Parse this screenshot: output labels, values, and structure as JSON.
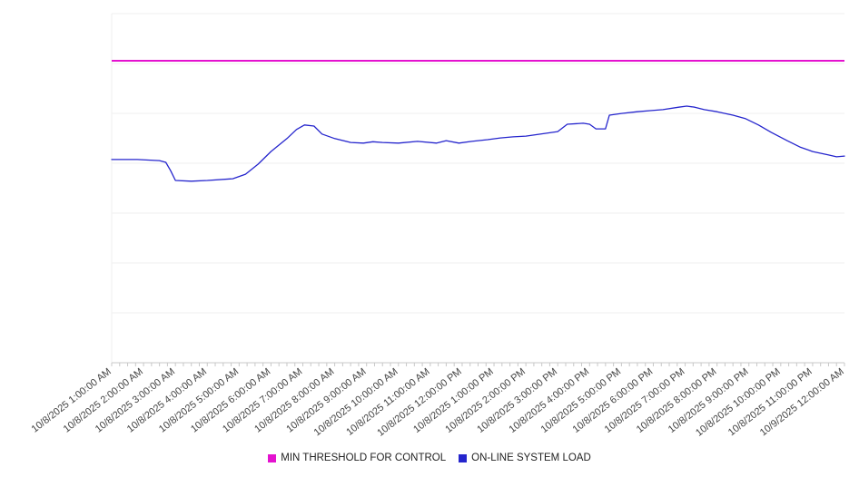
{
  "page": {
    "background": "#ffffff"
  },
  "legend": {
    "position": "bottom-center"
  },
  "chart_data": {
    "type": "line",
    "title": "",
    "xlabel": "",
    "ylabel": "",
    "y_axis_labels_visible": false,
    "ylim": [
      0,
      100
    ],
    "grid": "horizontal",
    "gridline_count": 7,
    "legend_position": "bottom",
    "colors": {
      "grid": "#efefef",
      "axis": "#c8c8c8",
      "tick_text": "#444444",
      "background": "#ffffff"
    },
    "x_tick_labels": [
      "10/8/2025 1:00:00 AM",
      "10/8/2025 2:00:00 AM",
      "10/8/2025 3:00:00 AM",
      "10/8/2025 4:00:00 AM",
      "10/8/2025 5:00:00 AM",
      "10/8/2025 6:00:00 AM",
      "10/8/2025 7:00:00 AM",
      "10/8/2025 8:00:00 AM",
      "10/8/2025 9:00:00 AM",
      "10/8/2025 10:00:00 AM",
      "10/8/2025 11:00:00 AM",
      "10/8/2025 12:00:00 PM",
      "10/8/2025 1:00:00 PM",
      "10/8/2025 2:00:00 PM",
      "10/8/2025 3:00:00 PM",
      "10/8/2025 4:00:00 PM",
      "10/8/2025 5:00:00 PM",
      "10/8/2025 6:00:00 PM",
      "10/8/2025 7:00:00 PM",
      "10/8/2025 8:00:00 PM",
      "10/8/2025 9:00:00 PM",
      "10/8/2025 10:00:00 PM",
      "10/8/2025 11:00:00 PM",
      "10/9/2025 12:00:00 AM"
    ],
    "series": [
      {
        "name": "MIN THRESHOLD FOR CONTROL",
        "type": "threshold",
        "color": "#e412cf",
        "value": 86.5
      },
      {
        "name": "ON-LINE SYSTEM LOAD",
        "type": "line",
        "color": "#2525cd",
        "points": [
          [
            0,
            58.2
          ],
          [
            0.8,
            58.2
          ],
          [
            1.5,
            57.9
          ],
          [
            1.7,
            57.4
          ],
          [
            1.85,
            55.0
          ],
          [
            2,
            52.2
          ],
          [
            2.5,
            52.0
          ],
          [
            3,
            52.2
          ],
          [
            3.8,
            52.7
          ],
          [
            4.2,
            54.0
          ],
          [
            4.6,
            56.9
          ],
          [
            5,
            60.5
          ],
          [
            5.5,
            64.2
          ],
          [
            5.8,
            66.8
          ],
          [
            6.05,
            68.1
          ],
          [
            6.35,
            67.8
          ],
          [
            6.6,
            65.5
          ],
          [
            7,
            64.2
          ],
          [
            7.5,
            63.1
          ],
          [
            7.9,
            62.9
          ],
          [
            8.2,
            63.3
          ],
          [
            8.5,
            63.1
          ],
          [
            9,
            62.9
          ],
          [
            9.6,
            63.4
          ],
          [
            10.2,
            62.9
          ],
          [
            10.5,
            63.6
          ],
          [
            10.9,
            62.9
          ],
          [
            11.3,
            63.4
          ],
          [
            11.8,
            63.9
          ],
          [
            12.2,
            64.4
          ],
          [
            12.6,
            64.7
          ],
          [
            13,
            64.9
          ],
          [
            13.6,
            65.7
          ],
          [
            14,
            66.2
          ],
          [
            14.3,
            68.3
          ],
          [
            14.8,
            68.6
          ],
          [
            15,
            68.3
          ],
          [
            15.2,
            67.0
          ],
          [
            15.5,
            67.0
          ],
          [
            15.62,
            70.9
          ],
          [
            16,
            71.4
          ],
          [
            16.5,
            71.9
          ],
          [
            16.9,
            72.2
          ],
          [
            17.3,
            72.5
          ],
          [
            17.8,
            73.2
          ],
          [
            18.05,
            73.5
          ],
          [
            18.3,
            73.2
          ],
          [
            18.6,
            72.5
          ],
          [
            19,
            71.9
          ],
          [
            19.5,
            70.9
          ],
          [
            19.9,
            69.9
          ],
          [
            20.3,
            68.1
          ],
          [
            20.7,
            66.0
          ],
          [
            21.2,
            63.6
          ],
          [
            21.6,
            61.8
          ],
          [
            22,
            60.5
          ],
          [
            22.5,
            59.5
          ],
          [
            22.75,
            59.0
          ],
          [
            23,
            59.2
          ]
        ]
      }
    ]
  }
}
